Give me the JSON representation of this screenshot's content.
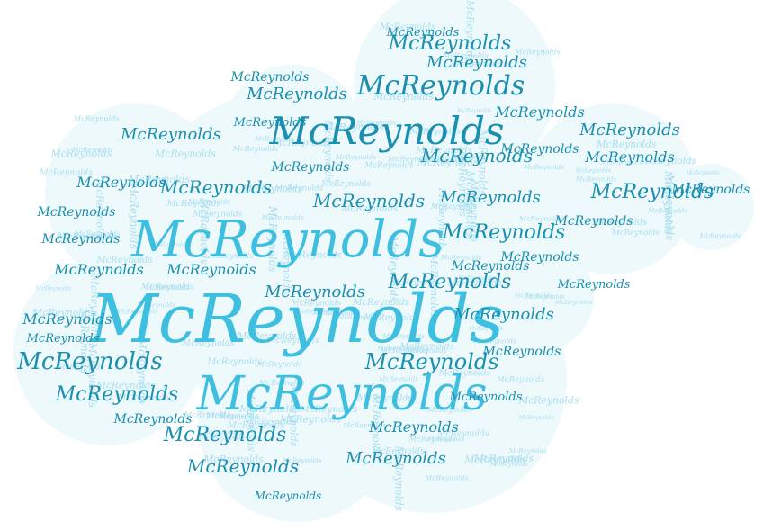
{
  "word": "McReynolds",
  "palette": {
    "cloud_fill": "#eef9fc",
    "light": "#a9deee",
    "mid": "#3fbfe0",
    "dark": "#1499c4",
    "teal": "#1a8fb0"
  }
}
